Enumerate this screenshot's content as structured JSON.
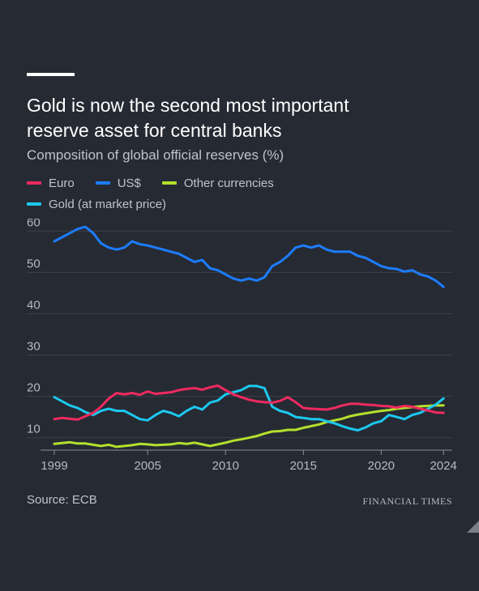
{
  "header": {
    "title_line1": "Gold is now the second most important",
    "title_line2": "reserve asset for central banks",
    "subtitle": "Composition of global official reserves (%)"
  },
  "footer": {
    "source": "Source: ECB",
    "brand": "FINANCIAL TIMES"
  },
  "colors": {
    "Euro": "#ee2a5f",
    "US$": "#1c7dff",
    "Other currencies": "#b4e02c",
    "Gold (at market price)": "#1cc8ee",
    "background": "#262a33",
    "grid": "#3b404a",
    "axis_text": "#b6b9bf"
  },
  "chart_data": {
    "type": "line",
    "title": "Gold is now the second most important reserve asset for central banks",
    "subtitle": "Composition of global official reserves (%)",
    "xlabel": "",
    "ylabel": "",
    "xlim": [
      1999,
      2024.2
    ],
    "ylim": [
      7,
      63
    ],
    "yticks": [
      10,
      20,
      30,
      40,
      50,
      60
    ],
    "xticks": [
      1999,
      2005,
      2010,
      2015,
      2020,
      2024
    ],
    "grid": true,
    "legend_position": "top-left",
    "series": [
      {
        "name": "Euro",
        "x": [
          1999,
          1999.5,
          2000,
          2000.5,
          2001,
          2001.5,
          2002,
          2002.5,
          2003,
          2003.5,
          2004,
          2004.5,
          2005,
          2005.5,
          2006,
          2006.5,
          2007,
          2007.5,
          2008,
          2008.5,
          2009,
          2009.5,
          2010,
          2010.5,
          2011,
          2011.5,
          2012,
          2012.5,
          2013,
          2013.5,
          2014,
          2014.5,
          2015,
          2015.5,
          2016,
          2016.5,
          2017,
          2017.5,
          2018,
          2018.5,
          2019,
          2019.5,
          2020,
          2020.5,
          2021,
          2021.5,
          2022,
          2022.5,
          2023,
          2023.5,
          2024
        ],
        "values": [
          14.5,
          14.8,
          14.6,
          14.4,
          15.2,
          16.0,
          17.5,
          19.5,
          20.8,
          20.5,
          20.8,
          20.4,
          21.2,
          20.6,
          20.8,
          21.0,
          21.5,
          21.8,
          22.0,
          21.6,
          22.2,
          22.6,
          21.5,
          20.5,
          19.8,
          19.2,
          18.8,
          18.6,
          18.5,
          18.9,
          19.8,
          18.6,
          17.2,
          17.0,
          16.9,
          16.8,
          17.2,
          17.8,
          18.2,
          18.2,
          18.0,
          17.9,
          17.7,
          17.6,
          17.3,
          17.7,
          17.5,
          17.0,
          16.6,
          16.1,
          16.0
        ]
      },
      {
        "name": "US$",
        "x": [
          1999,
          1999.5,
          2000,
          2000.5,
          2001,
          2001.5,
          2002,
          2002.5,
          2003,
          2003.5,
          2004,
          2004.5,
          2005,
          2005.5,
          2006,
          2006.5,
          2007,
          2007.5,
          2008,
          2008.5,
          2009,
          2009.5,
          2010,
          2010.5,
          2011,
          2011.5,
          2012,
          2012.5,
          2013,
          2013.5,
          2014,
          2014.5,
          2015,
          2015.5,
          2016,
          2016.5,
          2017,
          2017.5,
          2018,
          2018.5,
          2019,
          2019.5,
          2020,
          2020.5,
          2021,
          2021.5,
          2022,
          2022.5,
          2023,
          2023.5,
          2024
        ],
        "values": [
          57.5,
          58.5,
          59.5,
          60.5,
          61.0,
          59.5,
          57.0,
          56.0,
          55.5,
          56.0,
          57.5,
          56.8,
          56.5,
          56.0,
          55.5,
          55.0,
          54.5,
          53.5,
          52.5,
          53.0,
          51.0,
          50.5,
          49.5,
          48.5,
          48.0,
          48.5,
          48.0,
          48.8,
          51.5,
          52.5,
          54.0,
          56.0,
          56.5,
          56.0,
          56.5,
          55.5,
          55.0,
          55.0,
          55.0,
          54.0,
          53.5,
          52.5,
          51.5,
          51.0,
          50.8,
          50.2,
          50.5,
          49.5,
          49.0,
          48.0,
          46.5
        ]
      },
      {
        "name": "Other currencies",
        "x": [
          1999,
          1999.5,
          2000,
          2000.5,
          2001,
          2001.5,
          2002,
          2002.5,
          2003,
          2003.5,
          2004,
          2004.5,
          2005,
          2005.5,
          2006,
          2006.5,
          2007,
          2007.5,
          2008,
          2008.5,
          2009,
          2009.5,
          2010,
          2010.5,
          2011,
          2011.5,
          2012,
          2012.5,
          2013,
          2013.5,
          2014,
          2014.5,
          2015,
          2015.5,
          2016,
          2016.5,
          2017,
          2017.5,
          2018,
          2018.5,
          2019,
          2019.5,
          2020,
          2020.5,
          2021,
          2021.5,
          2022,
          2022.5,
          2023,
          2023.5,
          2024
        ],
        "values": [
          8.5,
          8.7,
          8.9,
          8.6,
          8.6,
          8.3,
          8.0,
          8.3,
          7.8,
          8.0,
          8.2,
          8.5,
          8.4,
          8.2,
          8.3,
          8.4,
          8.7,
          8.5,
          8.8,
          8.4,
          8.0,
          8.4,
          8.8,
          9.3,
          9.6,
          10.0,
          10.4,
          11.0,
          11.5,
          11.6,
          11.9,
          11.9,
          12.4,
          12.8,
          13.2,
          13.8,
          14.2,
          14.6,
          15.2,
          15.6,
          15.9,
          16.2,
          16.5,
          16.7,
          17.0,
          17.2,
          17.4,
          17.6,
          17.7,
          17.8,
          17.8
        ]
      },
      {
        "name": "Gold (at market price)",
        "x": [
          1999,
          1999.5,
          2000,
          2000.5,
          2001,
          2001.5,
          2002,
          2002.5,
          2003,
          2003.5,
          2004,
          2004.5,
          2005,
          2005.5,
          2006,
          2006.5,
          2007,
          2007.5,
          2008,
          2008.5,
          2009,
          2009.5,
          2010,
          2010.5,
          2011,
          2011.5,
          2012,
          2012.5,
          2013,
          2013.5,
          2014,
          2014.5,
          2015,
          2015.5,
          2016,
          2016.5,
          2017,
          2017.5,
          2018,
          2018.5,
          2019,
          2019.5,
          2020,
          2020.5,
          2021,
          2021.5,
          2022,
          2022.5,
          2023,
          2023.5,
          2024
        ],
        "values": [
          19.8,
          18.8,
          17.8,
          17.2,
          16.2,
          15.5,
          16.5,
          17.0,
          16.5,
          16.5,
          15.5,
          14.5,
          14.2,
          15.5,
          16.5,
          16.0,
          15.2,
          16.5,
          17.5,
          16.8,
          18.5,
          19.0,
          20.5,
          21.0,
          21.5,
          22.5,
          22.5,
          22.0,
          17.5,
          16.5,
          16.0,
          15.0,
          14.8,
          14.5,
          14.5,
          14.0,
          13.5,
          12.8,
          12.2,
          11.8,
          12.5,
          13.5,
          14.0,
          15.5,
          15.0,
          14.5,
          15.5,
          16.0,
          17.0,
          18.0,
          19.5
        ]
      }
    ]
  }
}
